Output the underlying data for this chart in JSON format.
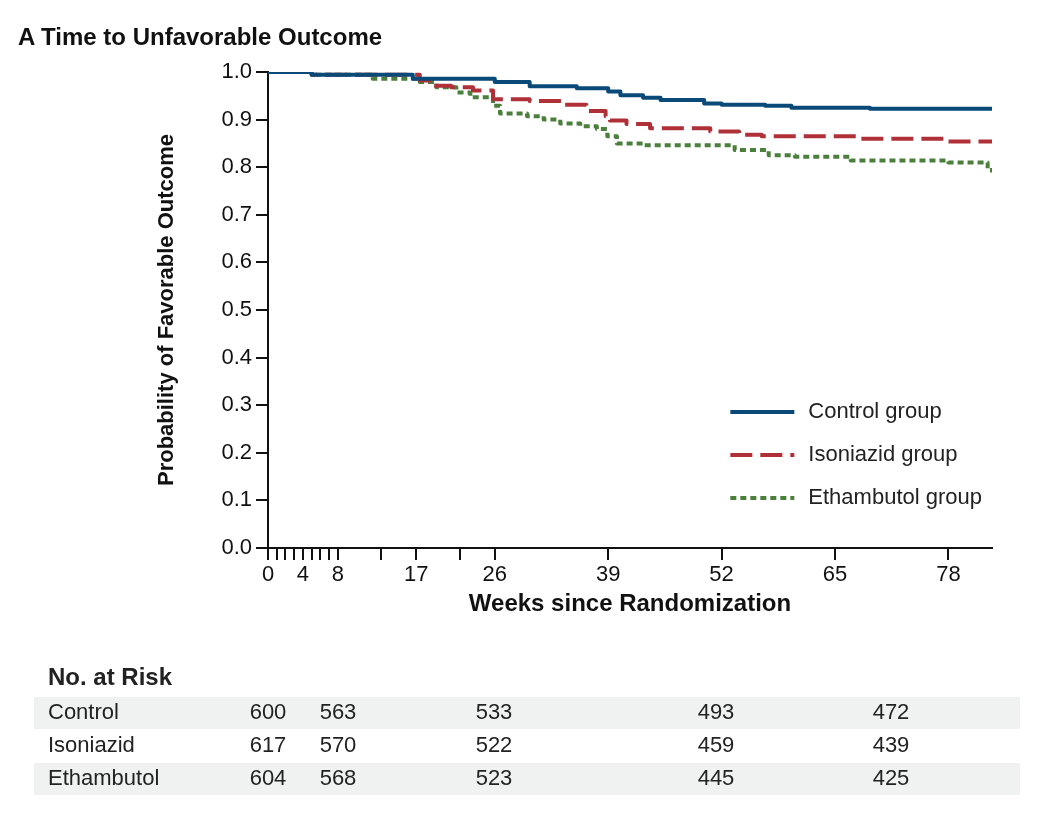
{
  "chart_data": {
    "type": "step",
    "title": "A Time to Unfavorable Outcome",
    "xlabel": "Weeks since Randomization",
    "ylabel": "Probability of Favorable Outcome",
    "xlim": [
      0,
      83
    ],
    "xticks": [
      0,
      {
        "value": 1,
        "label": null
      },
      {
        "value": 2,
        "label": null
      },
      {
        "value": 3,
        "label": null
      },
      4,
      {
        "value": 5,
        "label": null
      },
      {
        "value": 6,
        "label": null
      },
      {
        "value": 7,
        "label": null
      },
      8,
      {
        "value": 13,
        "label": null
      },
      17,
      {
        "value": 22,
        "label": null
      },
      26,
      39,
      52,
      65,
      78
    ],
    "ylim": [
      0,
      1
    ],
    "yticks": [
      {
        "value": 0,
        "label": "0.0"
      },
      0.1,
      0.2,
      0.3,
      0.4,
      0.5,
      0.6,
      0.7,
      0.8,
      0.9,
      {
        "value": 1,
        "label": "1.0"
      }
    ],
    "grid": false,
    "legend": "bottom right",
    "marker": "none",
    "series": [
      {
        "name": "Control group",
        "color": "#0a4a78",
        "line_style": "solid",
        "x": [
          0,
          5,
          16.6,
          26,
          30,
          35.4,
          39,
          40.4,
          43,
          45,
          50,
          52,
          57,
          60,
          69,
          83
        ],
        "values": [
          1,
          0.994,
          0.986,
          0.979,
          0.97,
          0.966,
          0.959,
          0.951,
          0.946,
          0.941,
          0.934,
          0.931,
          0.929,
          0.925,
          0.923,
          0.923
        ]
      },
      {
        "name": "Isoniazid group",
        "color": "#b03038",
        "line_style": "dashed",
        "x": [
          0,
          5,
          17.4,
          19,
          21,
          23.5,
          25.8,
          30,
          34,
          36.5,
          38.7,
          39.2,
          41.1,
          43.8,
          50.7,
          54,
          56.6,
          68,
          78,
          83
        ],
        "values": [
          1,
          0.994,
          0.982,
          0.971,
          0.968,
          0.961,
          0.943,
          0.939,
          0.931,
          0.918,
          0.907,
          0.898,
          0.891,
          0.882,
          0.875,
          0.868,
          0.865,
          0.86,
          0.854,
          0.854
        ]
      },
      {
        "name": "Ethambutol group",
        "color": "#4a7f3c",
        "line_style": "dotted",
        "x": [
          0,
          5,
          12,
          17.4,
          19.3,
          21.6,
          23.2,
          25.8,
          26.6,
          29.7,
          31.6,
          33.5,
          35.8,
          37.7,
          38.9,
          40,
          43,
          53.5,
          57.4,
          60.4,
          66.8,
          78,
          82.5,
          83
        ],
        "values": [
          1,
          0.994,
          0.986,
          0.979,
          0.968,
          0.957,
          0.947,
          0.929,
          0.913,
          0.907,
          0.9,
          0.892,
          0.886,
          0.88,
          0.865,
          0.85,
          0.846,
          0.836,
          0.825,
          0.822,
          0.814,
          0.81,
          0.794,
          0.789
        ]
      }
    ],
    "annotations": [
      "No. at Risk",
      "Control",
      "600",
      "563",
      "533",
      "493",
      "472",
      "Isoniazid",
      "617",
      "570",
      "522",
      "459",
      "439",
      "Ethambutol",
      "604",
      "568",
      "523",
      "445",
      "425"
    ]
  }
}
